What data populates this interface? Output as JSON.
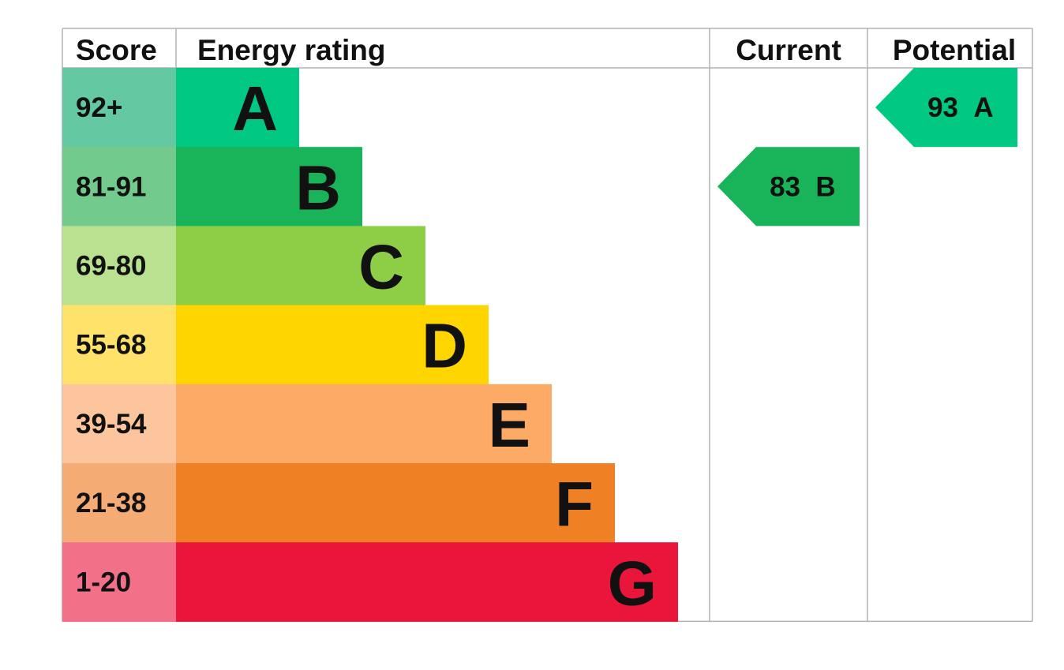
{
  "header": {
    "score": "Score",
    "energy_rating": "Energy rating",
    "current": "Current",
    "potential": "Potential"
  },
  "chart_data": {
    "type": "bar",
    "categories": [
      "A",
      "B",
      "C",
      "D",
      "E",
      "F",
      "G"
    ],
    "bands": [
      {
        "letter": "A",
        "range": "92+",
        "color": "#00c781",
        "score_color": "#64c9a2"
      },
      {
        "letter": "B",
        "range": "81-91",
        "color": "#19b459",
        "score_color": "#72cb8d"
      },
      {
        "letter": "C",
        "range": "69-80",
        "color": "#8dce46",
        "score_color": "#b9e18f"
      },
      {
        "letter": "D",
        "range": "55-68",
        "color": "#ffd500",
        "score_color": "#ffe26a"
      },
      {
        "letter": "E",
        "range": "39-54",
        "color": "#fcaa65",
        "score_color": "#fdc59d"
      },
      {
        "letter": "F",
        "range": "21-38",
        "color": "#ef8023",
        "score_color": "#f4ab74"
      },
      {
        "letter": "G",
        "range": "1-20",
        "color": "#e9153b",
        "score_color": "#f37089"
      }
    ],
    "current": {
      "score": "83",
      "band": "B",
      "color": "#19b459"
    },
    "potential": {
      "score": "93",
      "band": "A",
      "color": "#00c781"
    },
    "grid_color": "#b3b3b3"
  }
}
